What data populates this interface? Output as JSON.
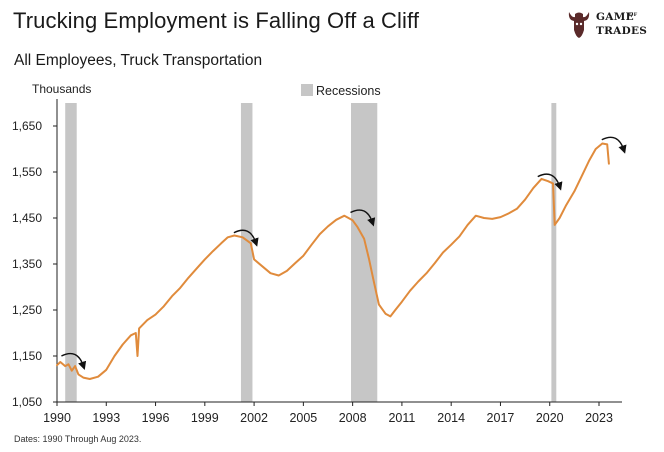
{
  "header": {
    "title": "Trucking Employment is Falling Off a Cliff",
    "subtitle": "All Employees, Truck Transportation"
  },
  "logo": {
    "line1": "GAME",
    "of": "OF",
    "line2": "TRADES",
    "icon": "bull-head-icon"
  },
  "footnote": "Dates: 1990 Through Aug 2023.",
  "colors": {
    "line": "#e08b3c",
    "recession": "#c6c6c6",
    "axis": "#222222",
    "arrow": "#111111"
  },
  "chart_data": {
    "type": "line",
    "title": "Trucking Employment is Falling Off a Cliff",
    "subtitle": "All Employees, Truck Transportation",
    "ylabel": "Thousands",
    "xlabel": "",
    "ylim": [
      1050,
      1700
    ],
    "xlim": [
      1990,
      2024.4
    ],
    "yticks": [
      1050,
      1150,
      1250,
      1350,
      1450,
      1550,
      1650
    ],
    "ytick_labels": [
      "1,050",
      "1,150",
      "1,250",
      "1,350",
      "1,450",
      "1,550",
      "1,650"
    ],
    "xticks": [
      1990,
      1993,
      1996,
      1999,
      2002,
      2005,
      2008,
      2011,
      2014,
      2017,
      2020,
      2023
    ],
    "grid": false,
    "legend": {
      "entries": [
        "Recessions"
      ],
      "placement": "top-center"
    },
    "recessions": [
      {
        "start": 1990.5,
        "end": 1991.2
      },
      {
        "start": 2001.2,
        "end": 2001.9
      },
      {
        "start": 2007.9,
        "end": 2009.5
      },
      {
        "start": 2020.1,
        "end": 2020.4
      }
    ],
    "series": [
      {
        "values": [
          [
            1990.0,
            1130
          ],
          [
            1990.2,
            1137
          ],
          [
            1990.5,
            1128
          ],
          [
            1990.7,
            1132
          ],
          [
            1990.9,
            1118
          ],
          [
            1991.1,
            1128
          ],
          [
            1991.3,
            1110
          ],
          [
            1991.6,
            1103
          ],
          [
            1992.0,
            1100
          ],
          [
            1992.5,
            1105
          ],
          [
            1993.0,
            1120
          ],
          [
            1993.5,
            1150
          ],
          [
            1994.0,
            1175
          ],
          [
            1994.5,
            1195
          ],
          [
            1994.8,
            1200
          ],
          [
            1994.9,
            1150
          ],
          [
            1995.0,
            1210
          ],
          [
            1995.5,
            1228
          ],
          [
            1996.0,
            1240
          ],
          [
            1996.5,
            1258
          ],
          [
            1997.0,
            1280
          ],
          [
            1997.5,
            1298
          ],
          [
            1998.0,
            1320
          ],
          [
            1998.5,
            1340
          ],
          [
            1999.0,
            1360
          ],
          [
            1999.5,
            1378
          ],
          [
            2000.0,
            1395
          ],
          [
            2000.4,
            1408
          ],
          [
            2000.8,
            1412
          ],
          [
            2001.3,
            1408
          ],
          [
            2001.8,
            1395
          ],
          [
            2002.0,
            1360
          ],
          [
            2002.5,
            1345
          ],
          [
            2003.0,
            1330
          ],
          [
            2003.5,
            1325
          ],
          [
            2004.0,
            1335
          ],
          [
            2004.5,
            1352
          ],
          [
            2005.0,
            1368
          ],
          [
            2005.5,
            1392
          ],
          [
            2006.0,
            1415
          ],
          [
            2006.5,
            1432
          ],
          [
            2007.0,
            1446
          ],
          [
            2007.5,
            1455
          ],
          [
            2008.0,
            1445
          ],
          [
            2008.3,
            1430
          ],
          [
            2008.7,
            1405
          ],
          [
            2009.0,
            1360
          ],
          [
            2009.3,
            1310
          ],
          [
            2009.6,
            1262
          ],
          [
            2010.0,
            1242
          ],
          [
            2010.3,
            1236
          ],
          [
            2010.6,
            1250
          ],
          [
            2011.0,
            1268
          ],
          [
            2011.5,
            1292
          ],
          [
            2012.0,
            1312
          ],
          [
            2012.5,
            1330
          ],
          [
            2013.0,
            1352
          ],
          [
            2013.5,
            1375
          ],
          [
            2014.0,
            1392
          ],
          [
            2014.5,
            1410
          ],
          [
            2015.0,
            1435
          ],
          [
            2015.5,
            1455
          ],
          [
            2016.0,
            1450
          ],
          [
            2016.5,
            1448
          ],
          [
            2017.0,
            1452
          ],
          [
            2017.5,
            1460
          ],
          [
            2018.0,
            1470
          ],
          [
            2018.5,
            1490
          ],
          [
            2019.0,
            1515
          ],
          [
            2019.5,
            1535
          ],
          [
            2019.9,
            1530
          ],
          [
            2020.2,
            1525
          ],
          [
            2020.3,
            1435
          ],
          [
            2020.6,
            1450
          ],
          [
            2021.0,
            1478
          ],
          [
            2021.5,
            1508
          ],
          [
            2022.0,
            1545
          ],
          [
            2022.4,
            1575
          ],
          [
            2022.8,
            1600
          ],
          [
            2023.2,
            1612
          ],
          [
            2023.5,
            1610
          ],
          [
            2023.6,
            1568
          ]
        ]
      }
    ],
    "annotations": [
      {
        "type": "down-arrow",
        "x": 1991.0,
        "y": 1150
      },
      {
        "type": "down-arrow",
        "x": 2001.5,
        "y": 1418
      },
      {
        "type": "down-arrow",
        "x": 2008.6,
        "y": 1462
      },
      {
        "type": "down-arrow",
        "x": 2020.0,
        "y": 1540
      },
      {
        "type": "down-arrow",
        "x": 2023.9,
        "y": 1620
      }
    ]
  }
}
